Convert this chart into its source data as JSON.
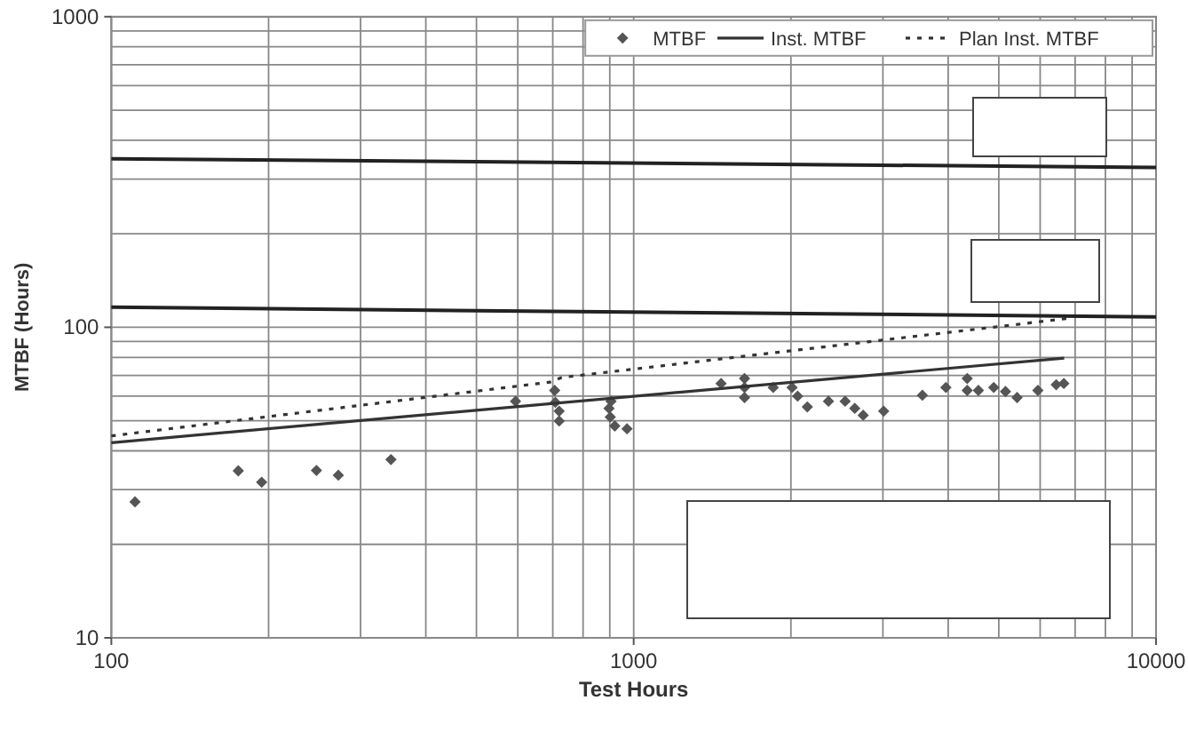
{
  "chart_data": {
    "type": "scatter",
    "xlabel": "Test Hours",
    "ylabel": "MTBF (Hours)",
    "log": "xy",
    "grid": true,
    "legend": "top right",
    "xlim": [
      100,
      10000
    ],
    "xticks": [
      100,
      1000,
      10000
    ],
    "ylim": [
      10,
      1000
    ],
    "yticks": [
      10,
      100,
      1000
    ],
    "series": [
      {
        "name": "MTBF",
        "marker": "diamond",
        "color": "#555555",
        "x": [
          111,
          175,
          194,
          247,
          272,
          343,
          594,
          706,
          708,
          720,
          720,
          897,
          902,
          905,
          920,
          971,
          1470,
          1630,
          1630,
          1630,
          1850,
          2010,
          2060,
          2150,
          2360,
          2540,
          2650,
          2750,
          3010,
          3570,
          3960,
          4350,
          4350,
          4570,
          4890,
          5150,
          5420,
          5940,
          6440,
          6660
        ],
        "values": [
          27.4,
          34.5,
          31.7,
          34.6,
          33.4,
          37.5,
          57.8,
          62.6,
          57.3,
          53.7,
          49.9,
          54.8,
          51.4,
          57.8,
          48.1,
          47.1,
          65.9,
          68.4,
          64.0,
          59.4,
          64.0,
          64.0,
          60.0,
          55.4,
          57.8,
          57.8,
          54.8,
          52.1,
          53.7,
          60.4,
          64.0,
          68.4,
          62.6,
          62.6,
          64.0,
          62.1,
          59.4,
          62.6,
          65.3,
          65.9
        ]
      },
      {
        "name": "Inst. MTBF",
        "type": "line",
        "line_style": "solid",
        "color": "#333333",
        "x": [
          100,
          6670
        ],
        "values": [
          42.5,
          79.6
        ]
      },
      {
        "name": "Plan Inst. MTBF",
        "type": "line",
        "line_style": "dotted",
        "color": "#333333",
        "x": [
          100,
          692,
          728,
          6860
        ],
        "values": [
          44.7,
          66.6,
          68.9,
          107
        ]
      },
      {
        "type": "line",
        "line_style": "solid",
        "color": "#222222",
        "x": [
          100,
          10000
        ],
        "values": [
          349,
          327
        ]
      },
      {
        "type": "line",
        "line_style": "solid",
        "color": "#222222",
        "x": [
          100,
          10000
        ],
        "values": [
          116,
          108
        ]
      }
    ]
  }
}
